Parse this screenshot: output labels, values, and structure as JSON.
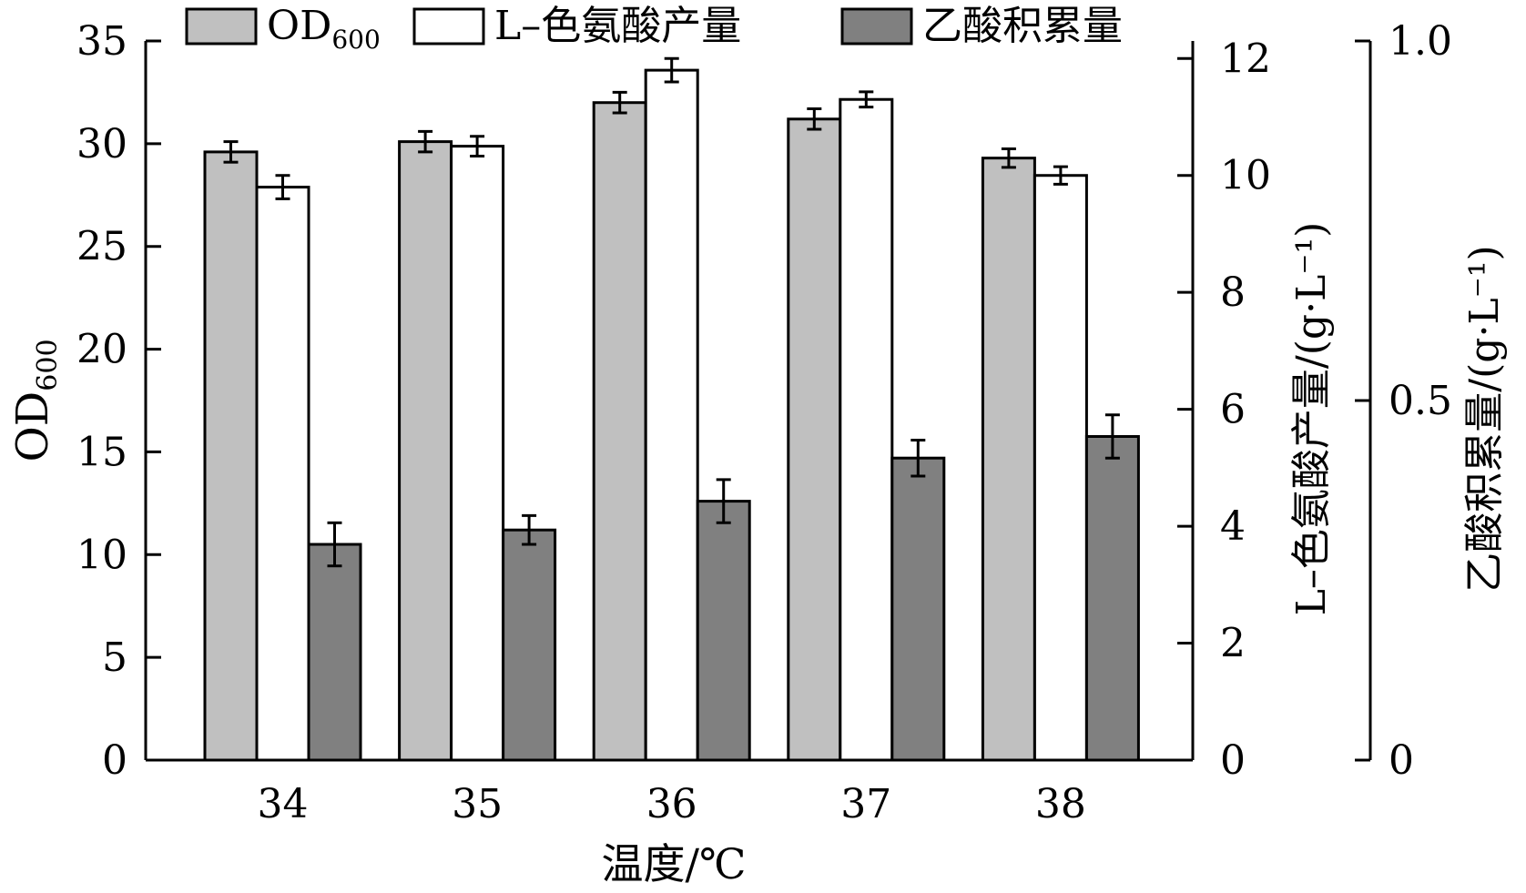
{
  "chart_data": {
    "type": "bar",
    "categories": [
      "34",
      "35",
      "36",
      "37",
      "38"
    ],
    "xlabel": "温度/℃",
    "axes": {
      "left": {
        "label": "OD",
        "label_sub": "600",
        "ylim": [
          0,
          35
        ],
        "ticks": [
          "0",
          "5",
          "10",
          "15",
          "20",
          "25",
          "30",
          "35"
        ]
      },
      "right1": {
        "label": "L–色氨酸产量/(g·L⁻¹)",
        "ylim": [
          0,
          12.3
        ],
        "ticks": [
          "0",
          "2",
          "4",
          "6",
          "8",
          "10",
          "12"
        ]
      },
      "right2": {
        "label": "乙酸积累量/(g·L⁻¹)",
        "ylim": [
          0,
          1.0
        ],
        "ticks": [
          "0",
          "0.5",
          "1.0"
        ]
      }
    },
    "series": [
      {
        "name": "OD",
        "name_sub": "600",
        "axis": "left",
        "color": "#c0c0c0",
        "values": [
          29.6,
          30.1,
          32.0,
          31.2,
          29.3
        ],
        "errors": [
          0.5,
          0.5,
          0.5,
          0.5,
          0.45
        ]
      },
      {
        "name": "L–色氨酸产量",
        "axis": "right1",
        "color": "#ffffff",
        "values": [
          9.8,
          10.5,
          11.8,
          11.3,
          10.0
        ],
        "errors": [
          0.2,
          0.17,
          0.2,
          0.13,
          0.15
        ]
      },
      {
        "name": "乙酸积累量",
        "axis": "right2",
        "color": "#808080",
        "values": [
          0.3,
          0.32,
          0.36,
          0.42,
          0.45
        ],
        "errors": [
          0.03,
          0.02,
          0.03,
          0.025,
          0.03
        ]
      }
    ],
    "legend_position": "top"
  }
}
